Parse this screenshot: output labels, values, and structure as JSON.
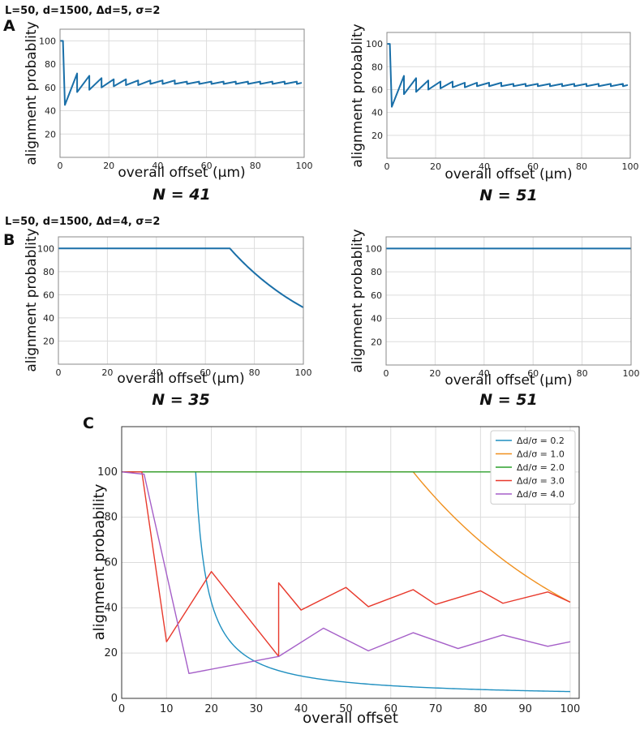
{
  "figure": {
    "row_a_params": "L=50, d=1500, Δd=5, σ=2",
    "row_b_params": "L=50, d=1500, Δd=4, σ=2",
    "letters": [
      "A",
      "B",
      "C"
    ]
  },
  "chart_data": [
    {
      "id": "A-left",
      "type": "line",
      "caption": "N = 41",
      "xlabel": "overall offset (µm)",
      "ylabel": "alignment probablity",
      "xlim": [
        0,
        100
      ],
      "ylim": [
        0,
        110
      ],
      "xticks": [
        0,
        20,
        40,
        60,
        80,
        100
      ],
      "yticks": [
        20,
        40,
        60,
        80,
        100
      ],
      "grid": true,
      "color": "#1a6fa8",
      "series": [
        {
          "name": "N = 41",
          "pattern": {
            "kind": "sawtooth",
            "flat_until": 1.2,
            "start": 100,
            "period": 5,
            "first_dip": 2,
            "mins": [
              45,
              56,
              58,
              60,
              61,
              62,
              62,
              63,
              63,
              63,
              63,
              63,
              63,
              63,
              63,
              63,
              63,
              63,
              63,
              63
            ],
            "peaks": [
              72,
              70,
              68,
              67,
              67,
              66,
              66,
              66,
              66,
              65,
              65,
              65,
              65,
              65,
              65,
              65,
              65,
              65,
              65
            ],
            "end": 64
          }
        }
      ]
    },
    {
      "id": "A-right",
      "type": "line",
      "caption": "N = 51",
      "xlabel": "overall offset (µm)",
      "ylabel": "alignment probablity",
      "xlim": [
        0,
        100
      ],
      "ylim": [
        0,
        110
      ],
      "xticks": [
        0,
        20,
        40,
        60,
        80,
        100
      ],
      "yticks": [
        20,
        40,
        60,
        80,
        100
      ],
      "grid": true,
      "color": "#1a6fa8",
      "series": [
        {
          "name": "N = 51",
          "pattern": {
            "kind": "sawtooth",
            "flat_until": 1.2,
            "start": 100,
            "period": 5,
            "first_dip": 2,
            "mins": [
              45,
              56,
              58,
              60,
              61,
              62,
              62,
              63,
              63,
              63,
              63,
              63,
              63,
              63,
              63,
              63,
              63,
              63,
              63,
              63
            ],
            "peaks": [
              72,
              70,
              68,
              67,
              67,
              66,
              66,
              66,
              66,
              65,
              65,
              65,
              65,
              65,
              65,
              65,
              65,
              65,
              65
            ],
            "end": 64
          }
        }
      ]
    },
    {
      "id": "B-left",
      "type": "line",
      "caption": "N = 35",
      "xlabel": "overall offset (µm)",
      "ylabel": "alignment probablity",
      "xlim": [
        0,
        100
      ],
      "ylim": [
        0,
        110
      ],
      "xticks": [
        0,
        20,
        40,
        60,
        80,
        100
      ],
      "yticks": [
        20,
        40,
        60,
        80,
        100
      ],
      "grid": true,
      "color": "#1a6fa8",
      "series": [
        {
          "name": "N = 35",
          "pattern": {
            "kind": "plateau-decay",
            "knee": 70,
            "end_value": 49
          }
        }
      ]
    },
    {
      "id": "B-right",
      "type": "line",
      "caption": "N = 51",
      "xlabel": "overall offset (µm)",
      "ylabel": "alignment probablity",
      "xlim": [
        0,
        100
      ],
      "ylim": [
        0,
        110
      ],
      "xticks": [
        0,
        20,
        40,
        60,
        80,
        100
      ],
      "yticks": [
        20,
        40,
        60,
        80,
        100
      ],
      "grid": true,
      "color": "#1a6fa8",
      "series": [
        {
          "name": "N = 51",
          "pattern": {
            "kind": "flat",
            "value": 100
          }
        }
      ]
    },
    {
      "id": "C",
      "type": "line",
      "xlabel": "overall offset",
      "ylabel": "alignment probability",
      "xlim": [
        0,
        102
      ],
      "ylim": [
        0,
        120
      ],
      "xticks": [
        0,
        10,
        20,
        30,
        40,
        50,
        60,
        70,
        80,
        90,
        100
      ],
      "yticks": [
        0,
        20,
        40,
        60,
        80,
        100
      ],
      "grid": true,
      "legend_position": "top-right",
      "series": [
        {
          "name": "Δd/σ = 0.2",
          "color": "#1f8fc0",
          "pattern": {
            "kind": "plateau-hyperbolic",
            "knee": 16.5,
            "end_value": 3
          }
        },
        {
          "name": "Δd/σ = 1.0",
          "color": "#f0901e",
          "pattern": {
            "kind": "plateau-decay",
            "knee": 65,
            "end_value": 42.5
          }
        },
        {
          "name": "Δd/σ = 2.0",
          "color": "#2ca02c",
          "pattern": {
            "kind": "flat",
            "value": 100
          }
        },
        {
          "name": "Δd/σ = 3.0",
          "color": "#e8392c",
          "points": [
            [
              0,
              100
            ],
            [
              4.5,
              100
            ],
            [
              10,
              25
            ],
            [
              20,
              56
            ],
            [
              35,
              18.5
            ],
            [
              35,
              51
            ],
            [
              40,
              39
            ],
            [
              50,
              49
            ],
            [
              55,
              40.5
            ],
            [
              65,
              48
            ],
            [
              70,
              41.5
            ],
            [
              80,
              47.5
            ],
            [
              85,
              42
            ],
            [
              95,
              47
            ],
            [
              100,
              42.5
            ]
          ]
        },
        {
          "name": "Δd/σ = 4.0",
          "color": "#a55fc8",
          "points": [
            [
              0,
              100
            ],
            [
              5,
              99
            ],
            [
              15,
              11
            ],
            [
              35,
              18.5
            ],
            [
              45,
              31
            ],
            [
              55,
              21
            ],
            [
              65,
              29
            ],
            [
              75,
              22
            ],
            [
              85,
              28
            ],
            [
              95,
              23
            ],
            [
              100,
              25
            ]
          ]
        }
      ]
    }
  ]
}
